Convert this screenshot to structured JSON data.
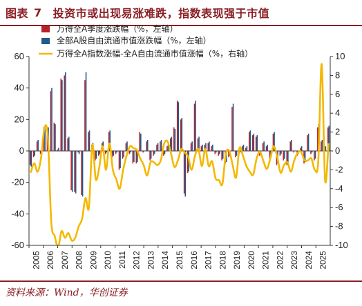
{
  "header": {
    "figure_label": "图表",
    "figure_number": "7",
    "title": "投资市或出现易涨难跌，指数表现强于市值"
  },
  "footer": {
    "source": "资料来源：Wind，华创证券"
  },
  "colors": {
    "bar_series_1": "#b8212c",
    "bar_series_2": "#1f5c8b",
    "line_series": "#f4b800",
    "brand": "#8a1f24"
  },
  "chart_data": {
    "type": "bar",
    "secondary_type": "line",
    "x_tick_labels": [
      "2005",
      "2006",
      "2007",
      "2008",
      "2009",
      "2010",
      "2011",
      "2012",
      "2013",
      "2014",
      "2015",
      "2016",
      "2017",
      "2018",
      "2019",
      "2020",
      "2021",
      "2022",
      "2023",
      "2024",
      "2025"
    ],
    "y_left": {
      "ticks": [
        60,
        40,
        20,
        0,
        -20,
        -40,
        -60
      ],
      "range": [
        -60,
        60
      ]
    },
    "y_right": {
      "ticks": [
        10,
        8,
        6,
        4,
        2,
        0,
        -2,
        -4,
        -6,
        -8,
        -10
      ],
      "range": [
        -10,
        10
      ]
    },
    "legend": [
      "万得全A季度涨跌幅（%，左轴）",
      "全部A股自由流通市值涨跌幅（%，左轴）",
      "万得全A指数涨幅-全A自由流通市值涨幅（%，右轴）"
    ],
    "legend_position": "top-left",
    "series": [
      {
        "name": "万得全A季度涨跌幅（%，左轴）",
        "axis": "left",
        "values": [
          -9,
          -4,
          6,
          -2,
          15,
          14,
          38,
          18,
          1,
          46,
          48,
          8,
          -25,
          -26,
          -1,
          -28,
          45,
          12,
          4,
          -6,
          -3,
          5,
          -2,
          12,
          -4,
          -2,
          -12,
          -5,
          5,
          -2,
          -8,
          -8,
          12,
          -1,
          6,
          -6,
          -3,
          4,
          6,
          -3,
          3,
          8,
          15,
          32,
          20,
          -27,
          -14,
          5,
          30,
          8,
          3,
          4,
          5,
          3,
          -2,
          -3,
          -6,
          -8,
          -4,
          28,
          -4,
          -2,
          3,
          2,
          12,
          10,
          9,
          -3,
          5,
          3,
          -5,
          11,
          -9,
          -3,
          -6,
          -9,
          6,
          -1,
          -3,
          2,
          -8,
          10,
          -2,
          -6,
          15,
          6,
          2,
          15
        ]
      },
      {
        "name": "全部A股自由流通市值涨跌幅（%，左轴）",
        "axis": "left",
        "values": [
          -10,
          -3,
          7,
          -1,
          16,
          15,
          40,
          17,
          2,
          45,
          50,
          9,
          -26,
          -27,
          -2,
          -29,
          50,
          13,
          5,
          -5,
          -2,
          6,
          -1,
          13,
          -3,
          -1,
          -11,
          -4,
          6,
          -1,
          -7,
          -7,
          11,
          0,
          7,
          -5,
          -2,
          5,
          7,
          -2,
          4,
          9,
          14,
          31,
          21,
          -29,
          -13,
          6,
          32,
          9,
          4,
          5,
          6,
          4,
          -1,
          -2,
          -5,
          -7,
          -3,
          30,
          -3,
          -1,
          4,
          3,
          13,
          11,
          10,
          -2,
          6,
          4,
          -4,
          12,
          -8,
          -2,
          -5,
          -8,
          7,
          0,
          -2,
          3,
          -7,
          11,
          -1,
          -5,
          17,
          7,
          3,
          16
        ]
      },
      {
        "name": "万得全A指数涨幅-全A自由流通市值涨幅（%，右轴）",
        "axis": "right",
        "values": [
          -2.3,
          -1.3,
          -2.2,
          -0.8,
          2.4,
          1.5,
          -7.5,
          -9.0,
          -10.2,
          -8.5,
          -9.2,
          -8.7,
          -9.5,
          -9.2,
          -8.0,
          -7.2,
          -5.0,
          -6.0,
          0.6,
          -3.0,
          -1.8,
          0.5,
          -2.0,
          0.8,
          -2.0,
          -3.0,
          -4.0,
          -2.0,
          -0.5,
          0.5,
          0.3,
          0.1,
          -0.8,
          -1.5,
          -2.6,
          -1.2,
          -1.2,
          -1.5,
          -1.0,
          0.8,
          1.0,
          -0.3,
          -1.7,
          -1.0,
          0.2,
          -0.2,
          -0.6,
          -2.0,
          -0.5,
          0.2,
          -1.6,
          0.2,
          -1.6,
          -1.1,
          -2.9,
          -3.1,
          -3.5,
          -0.3,
          0.0,
          -1.5,
          -2.8,
          0.3,
          -0.5,
          -1.6,
          -2.2,
          -2.5,
          -0.8,
          -0.1,
          -1.1,
          -1.9,
          -0.8,
          0.5,
          -0.6,
          -2.3,
          -1.5,
          -1.2,
          -2.2,
          -1.0,
          -0.2,
          -0.1,
          -1.0,
          -1.0,
          -0.8,
          -2.0,
          -1.1,
          9.2,
          -3.1,
          0.8
        ]
      }
    ]
  }
}
